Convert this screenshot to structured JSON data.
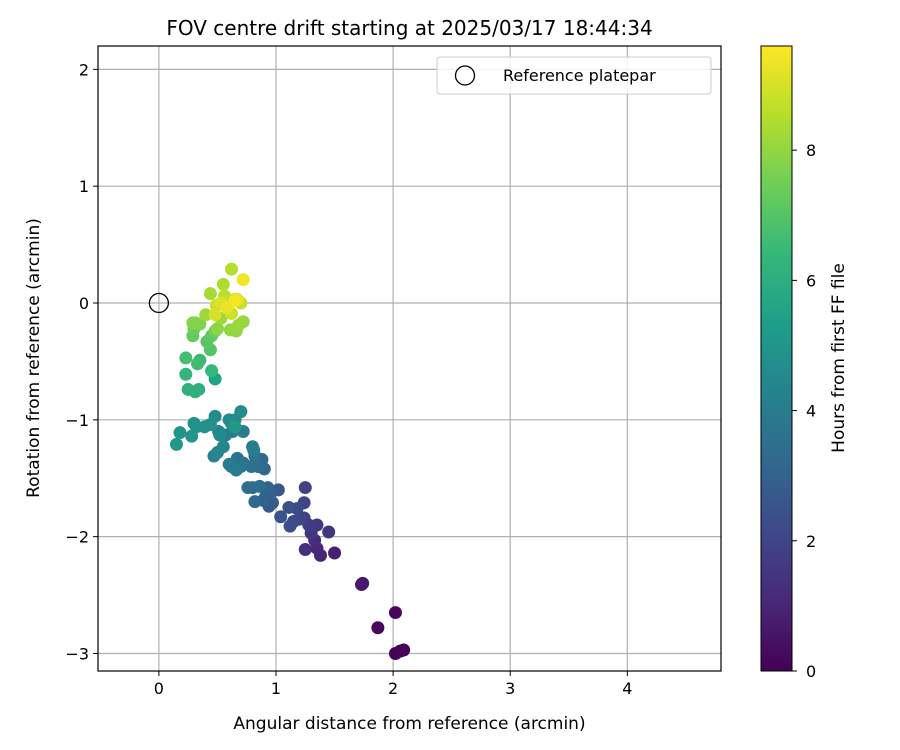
{
  "chart_data": {
    "type": "scatter",
    "title": "FOV centre drift starting at 2025/03/17 18:44:34",
    "xlabel": "Angular distance from reference (arcmin)",
    "ylabel": "Rotation from reference (arcmin)",
    "xlim": [
      -0.52,
      4.8
    ],
    "ylim": [
      -3.15,
      2.2
    ],
    "xticks": [
      0,
      1,
      2,
      3,
      4
    ],
    "xtick_labels": [
      "0",
      "1",
      "2",
      "3",
      "4"
    ],
    "yticks": [
      -3,
      -2,
      -1,
      0,
      1,
      2
    ],
    "ytick_labels": [
      "−3",
      "−2",
      "−1",
      "0",
      "1",
      "2"
    ],
    "grid": true,
    "legend": {
      "placement": "top-right",
      "entries": [
        {
          "label": "Reference platepar",
          "marker": "hollow-circle",
          "color": "#000000"
        }
      ]
    },
    "reference_point": {
      "x": 0,
      "y": 0
    },
    "colorbar": {
      "label": "Hours from first FF file",
      "range": [
        0,
        9.6
      ],
      "ticks": [
        0,
        2,
        4,
        6,
        8
      ],
      "tick_labels": [
        "0",
        "2",
        "4",
        "6",
        "8"
      ],
      "colormap": "viridis",
      "colormap_stops": [
        "#440154",
        "#482878",
        "#3e4989",
        "#31688e",
        "#26828e",
        "#1f9e89",
        "#35b779",
        "#6ece58",
        "#b5de2b",
        "#fde725"
      ]
    },
    "series": [
      {
        "points": [
          [
            2.02,
            -3.0,
            0.05
          ],
          [
            2.06,
            -2.98,
            0.1
          ],
          [
            2.09,
            -2.97,
            0.15
          ],
          [
            2.02,
            -2.65,
            0.2
          ],
          [
            1.87,
            -2.78,
            0.25
          ],
          [
            1.74,
            -2.4,
            0.6
          ],
          [
            1.73,
            -2.41,
            0.65
          ],
          [
            1.5,
            -2.14,
            0.9
          ],
          [
            1.38,
            -2.16,
            1.0
          ],
          [
            1.35,
            -2.1,
            1.1
          ],
          [
            1.33,
            -2.03,
            1.2
          ],
          [
            1.25,
            -2.11,
            1.3
          ],
          [
            1.45,
            -1.96,
            1.5
          ],
          [
            1.3,
            -1.97,
            1.5
          ],
          [
            1.35,
            -1.9,
            1.6
          ],
          [
            1.28,
            -1.9,
            1.7
          ],
          [
            1.24,
            -1.84,
            1.8
          ],
          [
            1.25,
            -1.58,
            1.9
          ],
          [
            1.24,
            -1.71,
            2.0
          ],
          [
            1.2,
            -1.85,
            2.1
          ],
          [
            1.15,
            -1.87,
            2.15
          ],
          [
            1.18,
            -1.76,
            2.2
          ],
          [
            1.12,
            -1.91,
            2.3
          ],
          [
            1.11,
            -1.75,
            2.4
          ],
          [
            1.04,
            -1.83,
            2.5
          ],
          [
            1.02,
            -1.6,
            2.6
          ],
          [
            0.94,
            -1.74,
            2.7
          ],
          [
            0.97,
            -1.71,
            2.8
          ],
          [
            0.91,
            -1.66,
            2.9
          ],
          [
            0.89,
            -1.69,
            3.0
          ],
          [
            0.95,
            -1.63,
            3.0
          ],
          [
            0.93,
            -1.58,
            3.1
          ],
          [
            0.9,
            -1.42,
            3.2
          ],
          [
            0.88,
            -1.34,
            3.2
          ],
          [
            0.82,
            -1.7,
            3.3
          ],
          [
            0.8,
            -1.58,
            3.3
          ],
          [
            0.86,
            -1.57,
            3.4
          ],
          [
            0.76,
            -1.58,
            3.5
          ],
          [
            0.85,
            -1.4,
            3.5
          ],
          [
            0.82,
            -1.31,
            3.6
          ],
          [
            0.79,
            -1.4,
            3.6
          ],
          [
            0.72,
            -1.37,
            3.7
          ],
          [
            0.67,
            -1.33,
            3.7
          ],
          [
            0.62,
            -1.4,
            3.8
          ],
          [
            0.7,
            -1.4,
            3.8
          ],
          [
            0.66,
            -1.43,
            3.9
          ],
          [
            0.6,
            -1.38,
            4.0
          ],
          [
            0.8,
            -1.23,
            4.0
          ],
          [
            0.81,
            -1.26,
            4.1
          ],
          [
            0.72,
            -1.1,
            4.1
          ],
          [
            0.63,
            -1.1,
            4.2
          ],
          [
            0.57,
            -1.13,
            4.2
          ],
          [
            0.51,
            -1.1,
            4.3
          ],
          [
            0.47,
            -1.31,
            4.3
          ],
          [
            0.5,
            -1.28,
            4.4
          ],
          [
            0.55,
            -1.23,
            4.4
          ],
          [
            0.62,
            -1.03,
            4.5
          ],
          [
            0.65,
            -1.0,
            4.5
          ],
          [
            0.6,
            -1.0,
            4.6
          ],
          [
            0.52,
            -1.13,
            4.6
          ],
          [
            0.48,
            -0.97,
            4.7
          ],
          [
            0.7,
            -0.93,
            4.7
          ],
          [
            0.39,
            -1.06,
            4.8
          ],
          [
            0.44,
            -1.04,
            4.8
          ],
          [
            0.32,
            -1.06,
            4.9
          ],
          [
            0.3,
            -1.03,
            4.9
          ],
          [
            0.28,
            -1.14,
            5.0
          ],
          [
            0.18,
            -1.11,
            5.0
          ],
          [
            0.15,
            -1.21,
            5.1
          ],
          [
            0.65,
            -1.06,
            5.1
          ],
          [
            0.48,
            -0.65,
            5.5
          ],
          [
            0.34,
            -0.74,
            6.0
          ],
          [
            0.31,
            -0.76,
            6.1
          ],
          [
            0.25,
            -0.74,
            6.2
          ],
          [
            0.23,
            -0.61,
            6.3
          ],
          [
            0.45,
            -0.58,
            6.4
          ],
          [
            0.35,
            -0.49,
            6.5
          ],
          [
            0.33,
            -0.52,
            6.6
          ],
          [
            0.23,
            -0.47,
            6.7
          ],
          [
            0.44,
            -0.4,
            7.0
          ],
          [
            0.41,
            -0.33,
            7.1
          ],
          [
            0.45,
            -0.28,
            7.2
          ],
          [
            0.29,
            -0.28,
            7.3
          ],
          [
            0.3,
            -0.22,
            7.4
          ],
          [
            0.48,
            -0.24,
            7.5
          ],
          [
            0.31,
            -0.17,
            7.6
          ],
          [
            0.35,
            -0.18,
            7.7
          ],
          [
            0.29,
            -0.17,
            7.8
          ],
          [
            0.5,
            -0.22,
            7.9
          ],
          [
            0.61,
            -0.23,
            8.0
          ],
          [
            0.66,
            -0.24,
            8.0
          ],
          [
            0.68,
            -0.19,
            8.1
          ],
          [
            0.72,
            -0.16,
            8.1
          ],
          [
            0.4,
            -0.1,
            8.2
          ],
          [
            0.53,
            -0.13,
            8.2
          ],
          [
            0.44,
            0.08,
            8.3
          ],
          [
            0.55,
            0.16,
            8.4
          ],
          [
            0.62,
            0.29,
            8.5
          ],
          [
            0.56,
            0.06,
            8.6
          ],
          [
            0.6,
            0.01,
            8.7
          ],
          [
            0.65,
            0.03,
            8.7
          ],
          [
            0.49,
            -0.02,
            8.8
          ],
          [
            0.7,
            0.0,
            8.8
          ],
          [
            0.62,
            -0.09,
            8.9
          ],
          [
            0.48,
            -0.1,
            9.0
          ],
          [
            0.53,
            0.0,
            9.1
          ],
          [
            0.67,
            0.03,
            9.2
          ],
          [
            0.58,
            -0.04,
            9.3
          ],
          [
            0.72,
            0.2,
            9.4
          ],
          [
            0.65,
            0.02,
            9.5
          ]
        ]
      }
    ]
  }
}
